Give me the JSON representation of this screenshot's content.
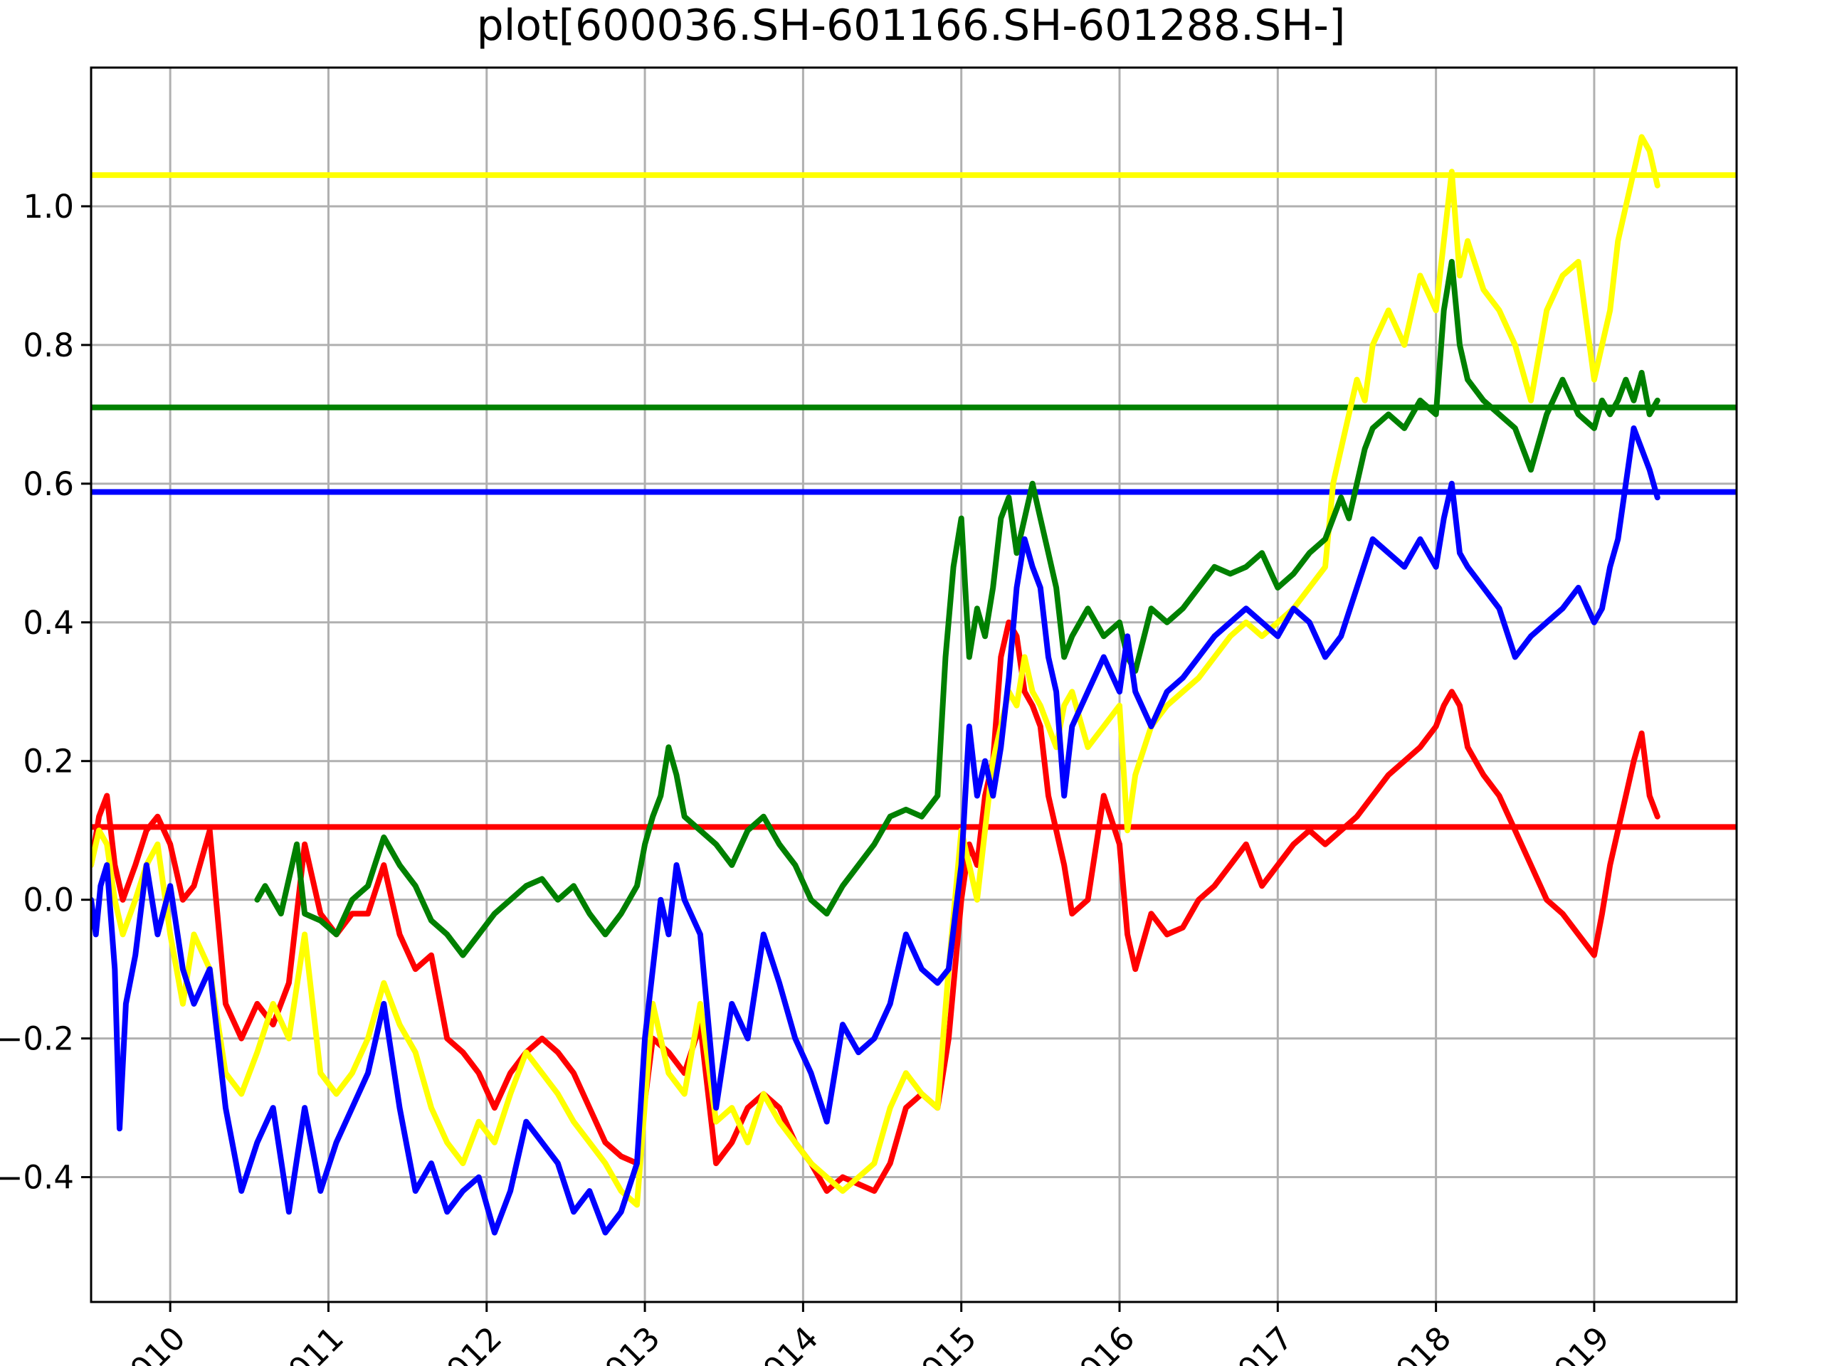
{
  "chart_data": {
    "type": "line",
    "title": "plot[600036.SH-601166.SH-601288.SH-]",
    "xlabel": "",
    "ylabel": "",
    "x_range": [
      2009.5,
      2019.9
    ],
    "ylim": [
      -0.58,
      1.2
    ],
    "grid": true,
    "legend": "none",
    "x_ticks": [
      {
        "value": 2010,
        "label": "2010"
      },
      {
        "value": 2011,
        "label": "2011"
      },
      {
        "value": 2012,
        "label": "2012"
      },
      {
        "value": 2013,
        "label": "2013"
      },
      {
        "value": 2014,
        "label": "2014"
      },
      {
        "value": 2015,
        "label": "2015"
      },
      {
        "value": 2016,
        "label": "2016"
      },
      {
        "value": 2017,
        "label": "2017"
      },
      {
        "value": 2018,
        "label": "2018"
      },
      {
        "value": 2019,
        "label": "2019"
      }
    ],
    "y_ticks": [
      {
        "value": -0.4,
        "label": "−0.4"
      },
      {
        "value": -0.2,
        "label": "−0.2"
      },
      {
        "value": 0.0,
        "label": "0.0"
      },
      {
        "value": 0.2,
        "label": "0.2"
      },
      {
        "value": 0.4,
        "label": "0.4"
      },
      {
        "value": 0.6,
        "label": "0.6"
      },
      {
        "value": 0.8,
        "label": "0.8"
      },
      {
        "value": 1.0,
        "label": "1.0"
      }
    ],
    "hlines": [
      {
        "value": 1.045,
        "color": "#ffff00"
      },
      {
        "value": 0.71,
        "color": "#008000"
      },
      {
        "value": 0.588,
        "color": "#0000ff"
      },
      {
        "value": 0.105,
        "color": "#ff0000"
      }
    ],
    "series": [
      {
        "color": "#ff0000",
        "x": [
          2009.5,
          2009.55,
          2009.6,
          2009.65,
          2009.7,
          2009.78,
          2009.85,
          2009.92,
          2010.0,
          2010.08,
          2010.15,
          2010.25,
          2010.35,
          2010.45,
          2010.55,
          2010.65,
          2010.75,
          2010.85,
          2010.95,
          2011.05,
          2011.15,
          2011.25,
          2011.35,
          2011.45,
          2011.55,
          2011.65,
          2011.75,
          2011.85,
          2011.95,
          2012.05,
          2012.15,
          2012.25,
          2012.35,
          2012.45,
          2012.55,
          2012.65,
          2012.75,
          2012.85,
          2012.95,
          2013.05,
          2013.15,
          2013.25,
          2013.35,
          2013.45,
          2013.55,
          2013.65,
          2013.75,
          2013.85,
          2013.95,
          2014.05,
          2014.15,
          2014.25,
          2014.35,
          2014.45,
          2014.55,
          2014.65,
          2014.75,
          2014.85,
          2014.92,
          2015.0,
          2015.05,
          2015.1,
          2015.15,
          2015.2,
          2015.25,
          2015.3,
          2015.35,
          2015.4,
          2015.45,
          2015.5,
          2015.55,
          2015.6,
          2015.65,
          2015.7,
          2015.8,
          2015.9,
          2016.0,
          2016.05,
          2016.1,
          2016.2,
          2016.3,
          2016.4,
          2016.5,
          2016.6,
          2016.7,
          2016.8,
          2016.9,
          2017.0,
          2017.1,
          2017.2,
          2017.3,
          2017.4,
          2017.5,
          2017.6,
          2017.7,
          2017.8,
          2017.9,
          2018.0,
          2018.05,
          2018.1,
          2018.15,
          2018.2,
          2018.3,
          2018.4,
          2018.5,
          2018.6,
          2018.7,
          2018.8,
          2018.9,
          2019.0,
          2019.05,
          2019.1,
          2019.15,
          2019.2,
          2019.25,
          2019.3,
          2019.35,
          2019.4
        ],
        "values": [
          0.05,
          0.12,
          0.15,
          0.05,
          0.0,
          0.05,
          0.1,
          0.12,
          0.08,
          0.0,
          0.02,
          0.1,
          -0.15,
          -0.2,
          -0.15,
          -0.18,
          -0.12,
          0.08,
          -0.02,
          -0.05,
          -0.02,
          -0.02,
          0.05,
          -0.05,
          -0.1,
          -0.08,
          -0.2,
          -0.22,
          -0.25,
          -0.3,
          -0.25,
          -0.22,
          -0.2,
          -0.22,
          -0.25,
          -0.3,
          -0.35,
          -0.37,
          -0.38,
          -0.2,
          -0.22,
          -0.25,
          -0.18,
          -0.38,
          -0.35,
          -0.3,
          -0.28,
          -0.3,
          -0.35,
          -0.38,
          -0.42,
          -0.4,
          -0.41,
          -0.42,
          -0.38,
          -0.3,
          -0.28,
          -0.3,
          -0.2,
          0.0,
          0.08,
          0.05,
          0.15,
          0.2,
          0.35,
          0.4,
          0.38,
          0.3,
          0.28,
          0.25,
          0.15,
          0.1,
          0.05,
          -0.02,
          0.0,
          0.15,
          0.08,
          -0.05,
          -0.1,
          -0.02,
          -0.05,
          -0.04,
          0.0,
          0.02,
          0.05,
          0.08,
          0.02,
          0.05,
          0.08,
          0.1,
          0.08,
          0.1,
          0.12,
          0.15,
          0.18,
          0.2,
          0.22,
          0.25,
          0.28,
          0.3,
          0.28,
          0.22,
          0.18,
          0.15,
          0.1,
          0.05,
          0.0,
          -0.02,
          -0.05,
          -0.08,
          -0.02,
          0.05,
          0.1,
          0.15,
          0.2,
          0.24,
          0.15,
          0.12
        ]
      },
      {
        "color": "#ffff00",
        "x": [
          2009.5,
          2009.55,
          2009.6,
          2009.65,
          2009.7,
          2009.78,
          2009.85,
          2009.92,
          2010.0,
          2010.08,
          2010.15,
          2010.25,
          2010.35,
          2010.45,
          2010.55,
          2010.65,
          2010.75,
          2010.85,
          2010.95,
          2011.05,
          2011.15,
          2011.25,
          2011.35,
          2011.45,
          2011.55,
          2011.65,
          2011.75,
          2011.85,
          2011.95,
          2012.05,
          2012.15,
          2012.25,
          2012.35,
          2012.45,
          2012.55,
          2012.65,
          2012.75,
          2012.85,
          2012.95,
          2013.05,
          2013.15,
          2013.25,
          2013.35,
          2013.45,
          2013.55,
          2013.65,
          2013.75,
          2013.85,
          2013.95,
          2014.05,
          2014.15,
          2014.25,
          2014.35,
          2014.45,
          2014.55,
          2014.65,
          2014.75,
          2014.85,
          2014.92,
          2015.0,
          2015.05,
          2015.1,
          2015.15,
          2015.2,
          2015.25,
          2015.3,
          2015.35,
          2015.4,
          2015.45,
          2015.5,
          2015.55,
          2015.6,
          2015.65,
          2015.7,
          2015.8,
          2015.9,
          2016.0,
          2016.05,
          2016.1,
          2016.2,
          2016.3,
          2016.4,
          2016.5,
          2016.6,
          2016.7,
          2016.8,
          2016.9,
          2017.0,
          2017.1,
          2017.2,
          2017.3,
          2017.35,
          2017.4,
          2017.45,
          2017.5,
          2017.55,
          2017.6,
          2017.7,
          2017.8,
          2017.9,
          2018.0,
          2018.05,
          2018.1,
          2018.15,
          2018.2,
          2018.3,
          2018.4,
          2018.5,
          2018.6,
          2018.7,
          2018.8,
          2018.9,
          2019.0,
          2019.05,
          2019.1,
          2019.15,
          2019.2,
          2019.25,
          2019.3,
          2019.35,
          2019.4
        ],
        "values": [
          0.05,
          0.1,
          0.08,
          0.0,
          -0.05,
          0.0,
          0.05,
          0.08,
          -0.05,
          -0.15,
          -0.05,
          -0.1,
          -0.25,
          -0.28,
          -0.22,
          -0.15,
          -0.2,
          -0.05,
          -0.25,
          -0.28,
          -0.25,
          -0.2,
          -0.12,
          -0.18,
          -0.22,
          -0.3,
          -0.35,
          -0.38,
          -0.32,
          -0.35,
          -0.28,
          -0.22,
          -0.25,
          -0.28,
          -0.32,
          -0.35,
          -0.38,
          -0.42,
          -0.44,
          -0.15,
          -0.25,
          -0.28,
          -0.15,
          -0.32,
          -0.3,
          -0.35,
          -0.28,
          -0.32,
          -0.35,
          -0.38,
          -0.4,
          -0.42,
          -0.4,
          -0.38,
          -0.3,
          -0.25,
          -0.28,
          -0.3,
          -0.1,
          0.1,
          0.05,
          0.0,
          0.1,
          0.2,
          0.25,
          0.3,
          0.28,
          0.35,
          0.3,
          0.28,
          0.25,
          0.22,
          0.28,
          0.3,
          0.22,
          0.25,
          0.28,
          0.1,
          0.18,
          0.25,
          0.28,
          0.3,
          0.32,
          0.35,
          0.38,
          0.4,
          0.38,
          0.4,
          0.42,
          0.45,
          0.48,
          0.6,
          0.65,
          0.7,
          0.75,
          0.72,
          0.8,
          0.85,
          0.8,
          0.9,
          0.85,
          0.95,
          1.05,
          0.9,
          0.95,
          0.88,
          0.85,
          0.8,
          0.72,
          0.85,
          0.9,
          0.92,
          0.75,
          0.8,
          0.85,
          0.95,
          1.0,
          1.05,
          1.1,
          1.08,
          1.03
        ]
      },
      {
        "color": "#008000",
        "x": [
          2010.55,
          2010.6,
          2010.7,
          2010.8,
          2010.85,
          2010.95,
          2011.05,
          2011.15,
          2011.25,
          2011.35,
          2011.45,
          2011.55,
          2011.65,
          2011.75,
          2011.85,
          2011.95,
          2012.05,
          2012.15,
          2012.25,
          2012.35,
          2012.45,
          2012.55,
          2012.65,
          2012.75,
          2012.85,
          2012.95,
          2013.0,
          2013.05,
          2013.1,
          2013.15,
          2013.2,
          2013.25,
          2013.35,
          2013.45,
          2013.55,
          2013.65,
          2013.75,
          2013.85,
          2013.95,
          2014.05,
          2014.15,
          2014.25,
          2014.35,
          2014.45,
          2014.55,
          2014.65,
          2014.75,
          2014.85,
          2014.9,
          2014.95,
          2015.0,
          2015.05,
          2015.1,
          2015.15,
          2015.2,
          2015.25,
          2015.3,
          2015.35,
          2015.4,
          2015.45,
          2015.5,
          2015.55,
          2015.6,
          2015.65,
          2015.7,
          2015.8,
          2015.9,
          2016.0,
          2016.05,
          2016.1,
          2016.2,
          2016.3,
          2016.4,
          2016.5,
          2016.6,
          2016.7,
          2016.8,
          2016.9,
          2017.0,
          2017.1,
          2017.2,
          2017.3,
          2017.4,
          2017.45,
          2017.5,
          2017.55,
          2017.6,
          2017.7,
          2017.8,
          2017.9,
          2018.0,
          2018.05,
          2018.1,
          2018.15,
          2018.2,
          2018.3,
          2018.4,
          2018.5,
          2018.6,
          2018.7,
          2018.8,
          2018.9,
          2019.0,
          2019.05,
          2019.1,
          2019.15,
          2019.2,
          2019.25,
          2019.3,
          2019.35,
          2019.4
        ],
        "values": [
          0.0,
          0.02,
          -0.02,
          0.08,
          -0.02,
          -0.03,
          -0.05,
          0.0,
          0.02,
          0.09,
          0.05,
          0.02,
          -0.03,
          -0.05,
          -0.08,
          -0.05,
          -0.02,
          0.0,
          0.02,
          0.03,
          0.0,
          0.02,
          -0.02,
          -0.05,
          -0.02,
          0.02,
          0.08,
          0.12,
          0.15,
          0.22,
          0.18,
          0.12,
          0.1,
          0.08,
          0.05,
          0.1,
          0.12,
          0.08,
          0.05,
          0.0,
          -0.02,
          0.02,
          0.05,
          0.08,
          0.12,
          0.13,
          0.12,
          0.15,
          0.35,
          0.48,
          0.55,
          0.35,
          0.42,
          0.38,
          0.45,
          0.55,
          0.58,
          0.5,
          0.55,
          0.6,
          0.55,
          0.5,
          0.45,
          0.35,
          0.38,
          0.42,
          0.38,
          0.4,
          0.35,
          0.33,
          0.42,
          0.4,
          0.42,
          0.45,
          0.48,
          0.47,
          0.48,
          0.5,
          0.45,
          0.47,
          0.5,
          0.52,
          0.58,
          0.55,
          0.6,
          0.65,
          0.68,
          0.7,
          0.68,
          0.72,
          0.7,
          0.85,
          0.92,
          0.8,
          0.75,
          0.72,
          0.7,
          0.68,
          0.62,
          0.7,
          0.75,
          0.7,
          0.68,
          0.72,
          0.7,
          0.72,
          0.75,
          0.72,
          0.76,
          0.7,
          0.72
        ]
      },
      {
        "color": "#0000ff",
        "x": [
          2009.5,
          2009.53,
          2009.56,
          2009.6,
          2009.65,
          2009.68,
          2009.72,
          2009.78,
          2009.85,
          2009.92,
          2010.0,
          2010.08,
          2010.15,
          2010.25,
          2010.35,
          2010.45,
          2010.55,
          2010.65,
          2010.75,
          2010.85,
          2010.95,
          2011.05,
          2011.15,
          2011.25,
          2011.35,
          2011.45,
          2011.55,
          2011.65,
          2011.75,
          2011.85,
          2011.95,
          2012.05,
          2012.15,
          2012.25,
          2012.35,
          2012.45,
          2012.55,
          2012.65,
          2012.75,
          2012.85,
          2012.95,
          2013.0,
          2013.05,
          2013.1,
          2013.15,
          2013.2,
          2013.25,
          2013.35,
          2013.45,
          2013.55,
          2013.65,
          2013.75,
          2013.85,
          2013.95,
          2014.05,
          2014.15,
          2014.25,
          2014.35,
          2014.45,
          2014.55,
          2014.65,
          2014.75,
          2014.85,
          2014.92,
          2015.0,
          2015.05,
          2015.1,
          2015.15,
          2015.2,
          2015.25,
          2015.3,
          2015.35,
          2015.4,
          2015.45,
          2015.5,
          2015.55,
          2015.6,
          2015.65,
          2015.7,
          2015.8,
          2015.9,
          2016.0,
          2016.05,
          2016.1,
          2016.2,
          2016.3,
          2016.4,
          2016.5,
          2016.6,
          2016.7,
          2016.8,
          2016.9,
          2017.0,
          2017.1,
          2017.2,
          2017.3,
          2017.4,
          2017.5,
          2017.6,
          2017.7,
          2017.8,
          2017.9,
          2018.0,
          2018.05,
          2018.1,
          2018.15,
          2018.2,
          2018.3,
          2018.4,
          2018.5,
          2018.6,
          2018.7,
          2018.8,
          2018.9,
          2019.0,
          2019.05,
          2019.1,
          2019.15,
          2019.2,
          2019.25,
          2019.3,
          2019.35,
          2019.4
        ],
        "values": [
          0.0,
          -0.05,
          0.02,
          0.05,
          -0.1,
          -0.33,
          -0.15,
          -0.08,
          0.05,
          -0.05,
          0.02,
          -0.1,
          -0.15,
          -0.1,
          -0.3,
          -0.42,
          -0.35,
          -0.3,
          -0.45,
          -0.3,
          -0.42,
          -0.35,
          -0.3,
          -0.25,
          -0.15,
          -0.3,
          -0.42,
          -0.38,
          -0.45,
          -0.42,
          -0.4,
          -0.48,
          -0.42,
          -0.32,
          -0.35,
          -0.38,
          -0.45,
          -0.42,
          -0.48,
          -0.45,
          -0.38,
          -0.2,
          -0.1,
          0.0,
          -0.05,
          0.05,
          0.0,
          -0.05,
          -0.3,
          -0.15,
          -0.2,
          -0.05,
          -0.12,
          -0.2,
          -0.25,
          -0.32,
          -0.18,
          -0.22,
          -0.2,
          -0.15,
          -0.05,
          -0.1,
          -0.12,
          -0.1,
          0.05,
          0.25,
          0.15,
          0.2,
          0.15,
          0.22,
          0.32,
          0.45,
          0.52,
          0.48,
          0.45,
          0.35,
          0.3,
          0.15,
          0.25,
          0.3,
          0.35,
          0.3,
          0.38,
          0.3,
          0.25,
          0.3,
          0.32,
          0.35,
          0.38,
          0.4,
          0.42,
          0.4,
          0.38,
          0.42,
          0.4,
          0.35,
          0.38,
          0.45,
          0.52,
          0.5,
          0.48,
          0.52,
          0.48,
          0.55,
          0.6,
          0.5,
          0.48,
          0.45,
          0.42,
          0.35,
          0.38,
          0.4,
          0.42,
          0.45,
          0.4,
          0.42,
          0.48,
          0.52,
          0.6,
          0.68,
          0.65,
          0.62,
          0.58
        ]
      }
    ]
  }
}
